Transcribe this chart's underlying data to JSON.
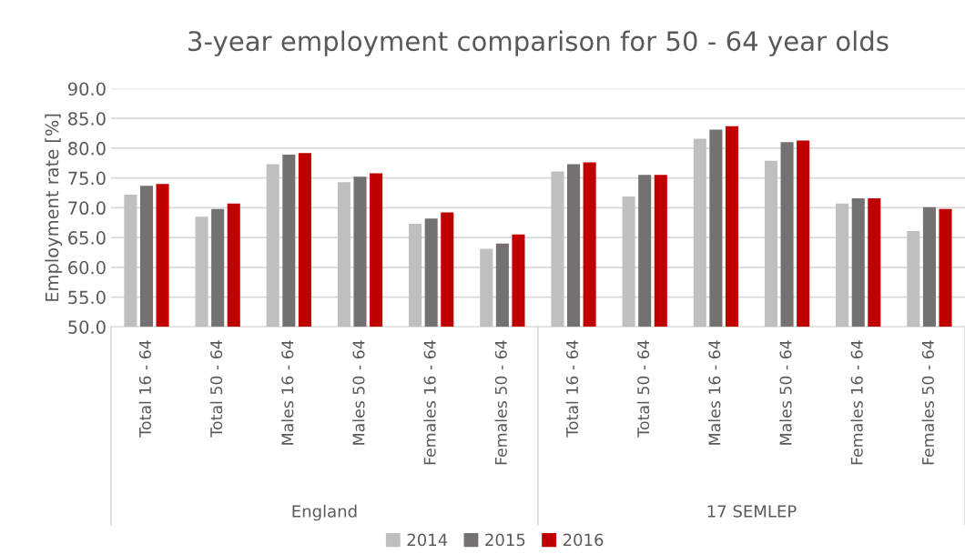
{
  "chart_data": {
    "type": "bar",
    "title": "3-year employment comparison for 50 - 64 year olds",
    "ylabel": "Employment rate [%]",
    "categories": [
      "Total 16 - 64",
      "Total 50 - 64",
      "Males 16 - 64",
      "Males 50 - 64",
      "Females 16 - 64",
      "Females 50 - 64",
      "Total 16 - 64",
      "Total 50 - 64",
      "Males 16 - 64",
      "Males 50 - 64",
      "Females 16 - 64",
      "Females 50 - 64"
    ],
    "annotations": [
      "England",
      "17 SEMLEP"
    ],
    "series": [
      {
        "name": "2014",
        "color": "#bfbfbf",
        "values": [
          72.2,
          68.5,
          77.3,
          74.3,
          67.3,
          63.1,
          76.1,
          71.9,
          81.6,
          77.9,
          70.7,
          66.1
        ]
      },
      {
        "name": "2015",
        "color": "#767171",
        "values": [
          73.7,
          69.8,
          78.9,
          75.2,
          68.2,
          64.0,
          77.3,
          75.5,
          83.1,
          81.0,
          71.6,
          70.1
        ]
      },
      {
        "name": "2016",
        "color": "#c00000",
        "values": [
          74.0,
          70.7,
          79.2,
          75.8,
          69.2,
          65.5,
          77.6,
          75.5,
          83.7,
          81.3,
          71.6,
          69.8
        ]
      }
    ],
    "ylim": [
      50,
      90
    ],
    "yticks": [
      {
        "value": 50,
        "label": "50.0"
      },
      {
        "value": 55,
        "label": "55.0"
      },
      {
        "value": 60,
        "label": "60.0"
      },
      {
        "value": 65,
        "label": "65.0"
      },
      {
        "value": 70,
        "label": "70.0"
      },
      {
        "value": 75,
        "label": "75.0"
      },
      {
        "value": 80,
        "label": "80.0"
      },
      {
        "value": 85,
        "label": "85.0"
      },
      {
        "value": 90,
        "label": "90.0"
      }
    ],
    "grid": "y",
    "legend": "bottom"
  }
}
